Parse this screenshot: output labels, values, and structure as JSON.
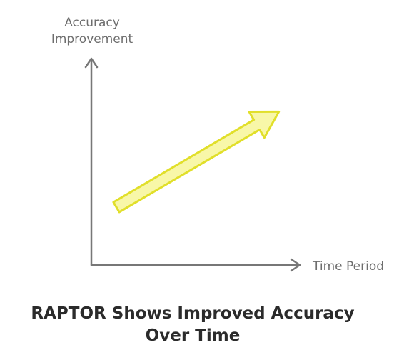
{
  "diagram": {
    "y_axis_label": [
      "Accuracy",
      "Improvement"
    ],
    "x_axis_label": "Time Period",
    "title": [
      "RAPTOR Shows Improved Accuracy",
      "Over Time"
    ]
  }
}
